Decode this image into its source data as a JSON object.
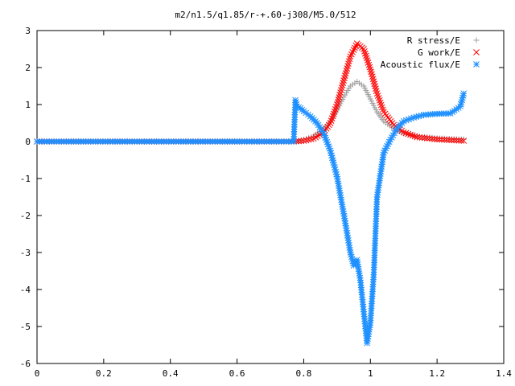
{
  "chart_data": {
    "type": "scatter",
    "title": "m2/n1.5/q1.85/r-+.60-j308/M5.0/512",
    "xlim": [
      0,
      1.4
    ],
    "ylim": [
      -6,
      3
    ],
    "xticks": [
      0,
      0.2,
      0.4,
      0.6,
      0.8,
      1,
      1.2,
      1.4
    ],
    "xtick_labels": [
      "0",
      "0.2",
      "0.4",
      "0.6",
      "0.8",
      "1",
      "1.2",
      "1.4"
    ],
    "yticks": [
      -6,
      -5,
      -4,
      -3,
      -2,
      -1,
      0,
      1,
      2,
      3
    ],
    "ytick_labels": [
      "-6",
      "-5",
      "-4",
      "-3",
      "-2",
      "-1",
      "0",
      "1",
      "2",
      "3"
    ],
    "grid": false,
    "legend_position": "top-right",
    "series": [
      {
        "name": "R stress/E",
        "marker": "plus",
        "color": "#a0a0a0",
        "points": [
          [
            0,
            0
          ],
          [
            0.3,
            0
          ],
          [
            0.6,
            0
          ],
          [
            0.77,
            0
          ],
          [
            0.8,
            0.05
          ],
          [
            0.83,
            0.15
          ],
          [
            0.86,
            0.35
          ],
          [
            0.88,
            0.55
          ],
          [
            0.9,
            0.85
          ],
          [
            0.92,
            1.2
          ],
          [
            0.94,
            1.5
          ],
          [
            0.96,
            1.62
          ],
          [
            0.98,
            1.5
          ],
          [
            1.0,
            1.15
          ],
          [
            1.02,
            0.8
          ],
          [
            1.04,
            0.55
          ],
          [
            1.07,
            0.35
          ],
          [
            1.1,
            0.22
          ],
          [
            1.14,
            0.14
          ],
          [
            1.2,
            0.09
          ],
          [
            1.28,
            0.06
          ]
        ]
      },
      {
        "name": "G work/E",
        "marker": "cross",
        "color": "#ff0000",
        "points": [
          [
            0,
            0
          ],
          [
            0.3,
            0
          ],
          [
            0.6,
            0
          ],
          [
            0.77,
            0
          ],
          [
            0.8,
            0.02
          ],
          [
            0.83,
            0.08
          ],
          [
            0.86,
            0.25
          ],
          [
            0.88,
            0.5
          ],
          [
            0.9,
            1.0
          ],
          [
            0.92,
            1.65
          ],
          [
            0.94,
            2.3
          ],
          [
            0.96,
            2.65
          ],
          [
            0.98,
            2.5
          ],
          [
            1.0,
            1.95
          ],
          [
            1.02,
            1.3
          ],
          [
            1.04,
            0.8
          ],
          [
            1.07,
            0.45
          ],
          [
            1.1,
            0.25
          ],
          [
            1.14,
            0.12
          ],
          [
            1.2,
            0.06
          ],
          [
            1.28,
            0.02
          ]
        ]
      },
      {
        "name": "Acoustic flux/E",
        "marker": "star",
        "color": "#1e90ff",
        "points": [
          [
            0,
            0
          ],
          [
            0.3,
            0
          ],
          [
            0.6,
            0
          ],
          [
            0.77,
            0
          ],
          [
            0.775,
            1.12
          ],
          [
            0.78,
            0.95
          ],
          [
            0.79,
            0.9
          ],
          [
            0.8,
            0.82
          ],
          [
            0.82,
            0.68
          ],
          [
            0.84,
            0.5
          ],
          [
            0.86,
            0.22
          ],
          [
            0.88,
            -0.25
          ],
          [
            0.9,
            -0.95
          ],
          [
            0.92,
            -1.95
          ],
          [
            0.94,
            -3.0
          ],
          [
            0.95,
            -3.35
          ],
          [
            0.96,
            -3.2
          ],
          [
            0.97,
            -3.75
          ],
          [
            0.98,
            -4.6
          ],
          [
            0.99,
            -5.45
          ],
          [
            1.0,
            -4.9
          ],
          [
            1.01,
            -3.6
          ],
          [
            1.02,
            -1.5
          ],
          [
            1.04,
            -0.3
          ],
          [
            1.06,
            0.05
          ],
          [
            1.08,
            0.35
          ],
          [
            1.1,
            0.55
          ],
          [
            1.13,
            0.65
          ],
          [
            1.16,
            0.72
          ],
          [
            1.2,
            0.75
          ],
          [
            1.24,
            0.76
          ],
          [
            1.27,
            0.95
          ],
          [
            1.28,
            1.3
          ]
        ]
      }
    ]
  }
}
